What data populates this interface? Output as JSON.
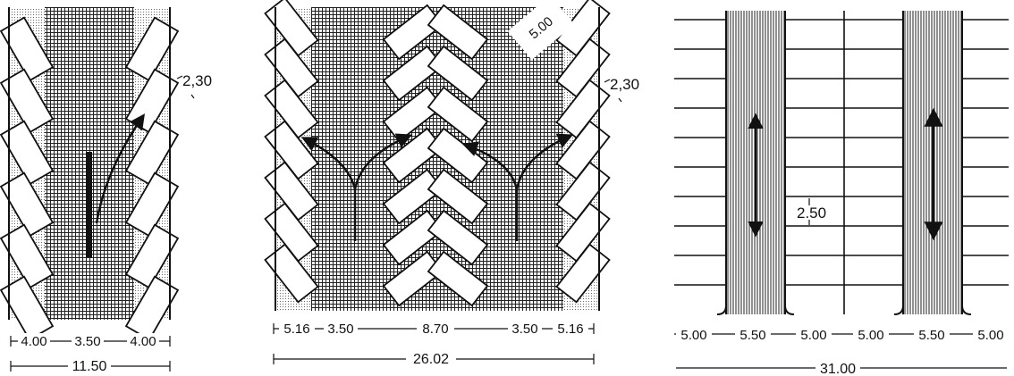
{
  "panels": [
    {
      "id": "angled-single",
      "annotation": "2,30",
      "dims": [
        "4.00",
        "3.50",
        "4.00"
      ],
      "total": "11.50"
    },
    {
      "id": "herringbone-double",
      "annotation": "2,30",
      "top_annotation": "5.00",
      "dims": [
        "5.16",
        "3.50",
        "8.70",
        "3.50",
        "5.16"
      ],
      "total": "26.02"
    },
    {
      "id": "perpendicular",
      "stall_width": "2.50",
      "dims": [
        "5.00",
        "5.50",
        "5.00",
        "5.00",
        "5.50",
        "5.00"
      ],
      "total": "31.00"
    }
  ],
  "colors": {
    "ink": "#111111",
    "paper": "#ffffff",
    "hatch": "#222222"
  }
}
